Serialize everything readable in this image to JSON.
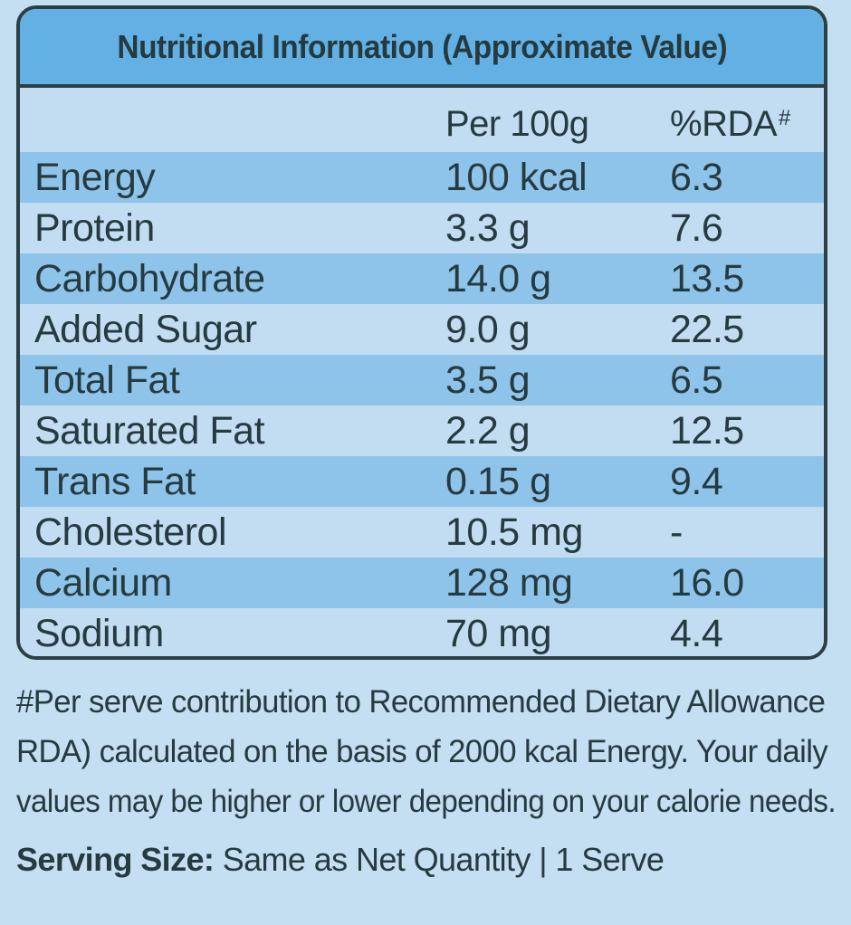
{
  "title": "Nutritional Information (Approximate Value)",
  "columns": {
    "per": "Per 100g",
    "rda": "%RDA",
    "rda_mark": "#"
  },
  "rows": [
    {
      "name": "Energy",
      "per": "100 kcal",
      "rda": "6.3"
    },
    {
      "name": "Protein",
      "per": "3.3 g",
      "rda": "7.6"
    },
    {
      "name": "Carbohydrate",
      "per": "14.0 g",
      "rda": "13.5"
    },
    {
      "name": "Added Sugar",
      "per": "9.0 g",
      "rda": "22.5"
    },
    {
      "name": "Total Fat",
      "per": "3.5 g",
      "rda": "6.5"
    },
    {
      "name": "Saturated Fat",
      "per": "2.2 g",
      "rda": "12.5"
    },
    {
      "name": "Trans Fat",
      "per": "0.15 g",
      "rda": "9.4"
    },
    {
      "name": "Cholesterol",
      "per": "10.5 mg",
      "rda": "-"
    },
    {
      "name": "Calcium",
      "per": "128 mg",
      "rda": "16.0"
    },
    {
      "name": "Sodium",
      "per": "70 mg",
      "rda": "4.4"
    }
  ],
  "footnote": {
    "line1": "#Per serve contribution to Recommended Dietary Allowance",
    "line2": "RDA) calculated on the basis of 2000 kcal Energy. Your daily",
    "line3": "values may be higher or lower depending on your calorie needs."
  },
  "serving": {
    "label": "Serving Size:",
    "value": "Same as Net Quantity |  1 Serve"
  },
  "colors": {
    "header_bg": "#63b1e4",
    "row_dark": "#8fc4ea",
    "row_light": "#c2ddf2",
    "page_bg": "#c4def2",
    "text": "#263b40"
  }
}
